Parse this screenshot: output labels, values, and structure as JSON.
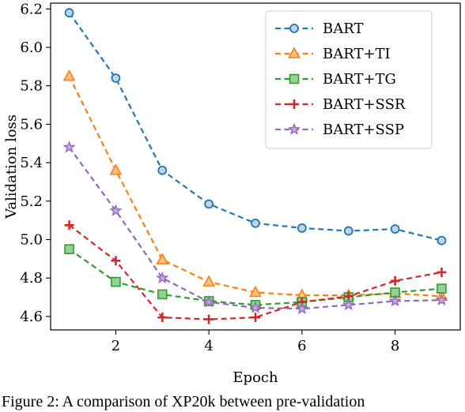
{
  "chart_data": {
    "type": "line",
    "xlabel": "Epoch",
    "ylabel": "Validation loss",
    "x": [
      1,
      2,
      3,
      4,
      5,
      6,
      7,
      8,
      9
    ],
    "xlim": [
      0.6,
      9.4
    ],
    "ylim": [
      4.53,
      6.23
    ],
    "xticks": [
      2,
      4,
      6,
      8
    ],
    "yticks": [
      4.6,
      4.8,
      5.0,
      5.2,
      5.4,
      5.6,
      5.8,
      6.0,
      6.2
    ],
    "grid": false,
    "legend_position": "top-right",
    "series": [
      {
        "name": "BART",
        "color": "#1f77b4",
        "marker": "circle",
        "values": [
          6.18,
          5.84,
          5.36,
          5.185,
          5.085,
          5.06,
          5.045,
          5.055,
          4.995
        ]
      },
      {
        "name": "BART+TI",
        "color": "#ff7f0e",
        "marker": "triangle",
        "values": [
          5.85,
          5.36,
          4.895,
          4.78,
          4.725,
          4.71,
          4.71,
          4.72,
          4.705
        ]
      },
      {
        "name": "BART+TG",
        "color": "#2ca02c",
        "marker": "square",
        "values": [
          4.95,
          4.78,
          4.715,
          4.68,
          4.66,
          4.675,
          4.7,
          4.725,
          4.745
        ]
      },
      {
        "name": "BART+SSR",
        "color": "#d62728",
        "marker": "plus",
        "values": [
          5.075,
          4.89,
          4.595,
          4.585,
          4.595,
          4.675,
          4.705,
          4.785,
          4.83
        ]
      },
      {
        "name": "BART+SSP",
        "color": "#9467bd",
        "marker": "star",
        "values": [
          5.48,
          5.15,
          4.8,
          4.675,
          4.645,
          4.64,
          4.66,
          4.68,
          4.685
        ]
      }
    ]
  },
  "caption": "Figure 2: A comparison of XP20k between pre-validation"
}
